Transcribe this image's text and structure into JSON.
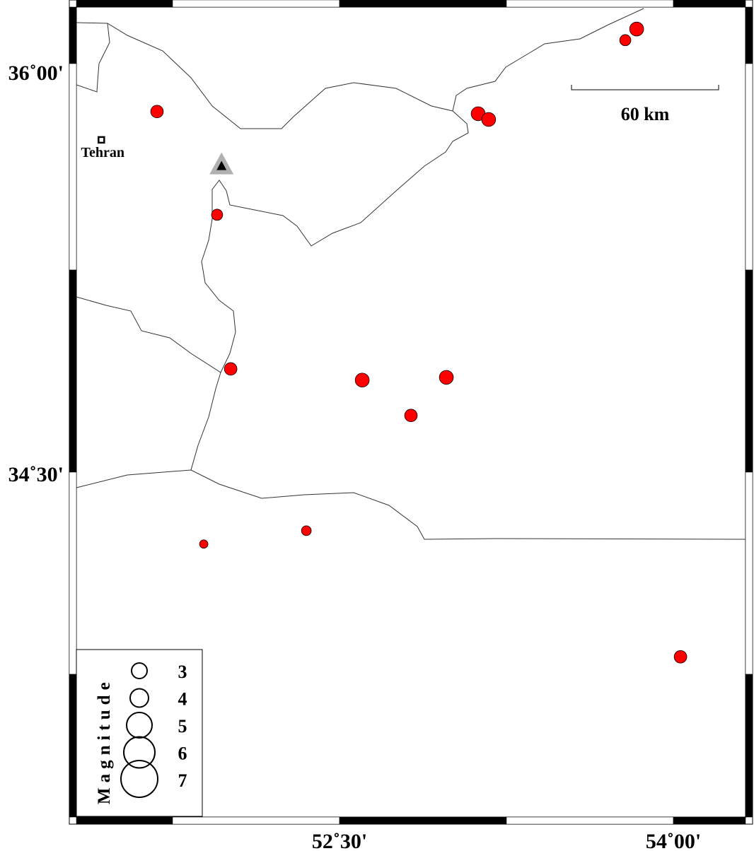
{
  "map": {
    "lon_ticks": [
      {
        "value": 52.5,
        "label": "52˚30'"
      },
      {
        "value": 54.0,
        "label": "54˚00'"
      }
    ],
    "lat_ticks": [
      {
        "value": 36.0,
        "label": "36˚00'"
      },
      {
        "value": 34.5,
        "label": "34˚30'"
      }
    ],
    "city": {
      "name": "Tehran",
      "lon": 51.43,
      "lat": 35.72
    },
    "station": {
      "lon": 51.97,
      "lat": 35.63,
      "symbol": "triangle"
    },
    "scale_bar": {
      "label": "60 km"
    },
    "colors": {
      "event_fill": "#ff0000",
      "station_outer": "#b0b0b0",
      "station_inner": "#000000"
    }
  },
  "events": [
    {
      "lon": 53.784,
      "lat": 36.086,
      "mag": 2.4
    },
    {
      "lon": 53.835,
      "lat": 36.127,
      "mag": 3.0
    },
    {
      "lon": 51.68,
      "lat": 35.824,
      "mag": 2.7
    },
    {
      "lon": 53.123,
      "lat": 35.816,
      "mag": 3.0
    },
    {
      "lon": 53.17,
      "lat": 35.795,
      "mag": 3.0
    },
    {
      "lon": 51.95,
      "lat": 35.445,
      "mag": 2.4
    },
    {
      "lon": 52.011,
      "lat": 34.879,
      "mag": 2.7
    },
    {
      "lon": 52.602,
      "lat": 34.838,
      "mag": 3.0
    },
    {
      "lon": 52.98,
      "lat": 34.848,
      "mag": 3.0
    },
    {
      "lon": 52.821,
      "lat": 34.708,
      "mag": 2.7
    },
    {
      "lon": 52.351,
      "lat": 34.285,
      "mag": 2.1
    },
    {
      "lon": 51.89,
      "lat": 34.236,
      "mag": 1.8
    },
    {
      "lon": 54.032,
      "lat": 33.822,
      "mag": 2.7
    }
  ],
  "legend": {
    "title": "Magnitude",
    "items": [
      {
        "mag": 3,
        "label": "3"
      },
      {
        "mag": 4,
        "label": "4"
      },
      {
        "mag": 5,
        "label": "5"
      },
      {
        "mag": 6,
        "label": "6"
      },
      {
        "mag": 7,
        "label": "7"
      }
    ]
  }
}
